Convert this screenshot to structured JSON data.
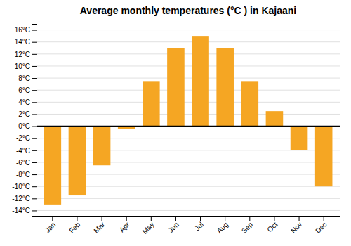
{
  "chart_data": {
    "type": "bar",
    "title": "Average monthly temperatures (°C ) in Kajaani",
    "categories": [
      "Jan",
      "Feb",
      "Mar",
      "Apr",
      "May",
      "Jun",
      "Jul",
      "Aug",
      "Sep",
      "Oct",
      "Nov",
      "Dec"
    ],
    "values": [
      -13,
      -11.5,
      -6.5,
      -0.5,
      7.5,
      13,
      15,
      13,
      7.5,
      2.5,
      -4,
      -10
    ],
    "color": "#F5A623",
    "ylim": [
      -15,
      17
    ],
    "yticks": [
      {
        "value": -14,
        "label": "-14°C"
      },
      {
        "value": -12,
        "label": "-12°C"
      },
      {
        "value": -10,
        "label": "-10°C"
      },
      {
        "value": -8,
        "label": "-8°C"
      },
      {
        "value": -6,
        "label": "-6°C"
      },
      {
        "value": -4,
        "label": "-4°C"
      },
      {
        "value": -2,
        "label": "-2°C"
      },
      {
        "value": 0,
        "label": "0°C"
      },
      {
        "value": 2,
        "label": "2°C"
      },
      {
        "value": 4,
        "label": "4°C"
      },
      {
        "value": 6,
        "label": "6°C"
      },
      {
        "value": 8,
        "label": "8°C"
      },
      {
        "value": 10,
        "label": "10°C"
      },
      {
        "value": 12,
        "label": "12°C"
      },
      {
        "value": 14,
        "label": "14°C"
      },
      {
        "value": 16,
        "label": "16°C"
      }
    ],
    "grid": true
  }
}
